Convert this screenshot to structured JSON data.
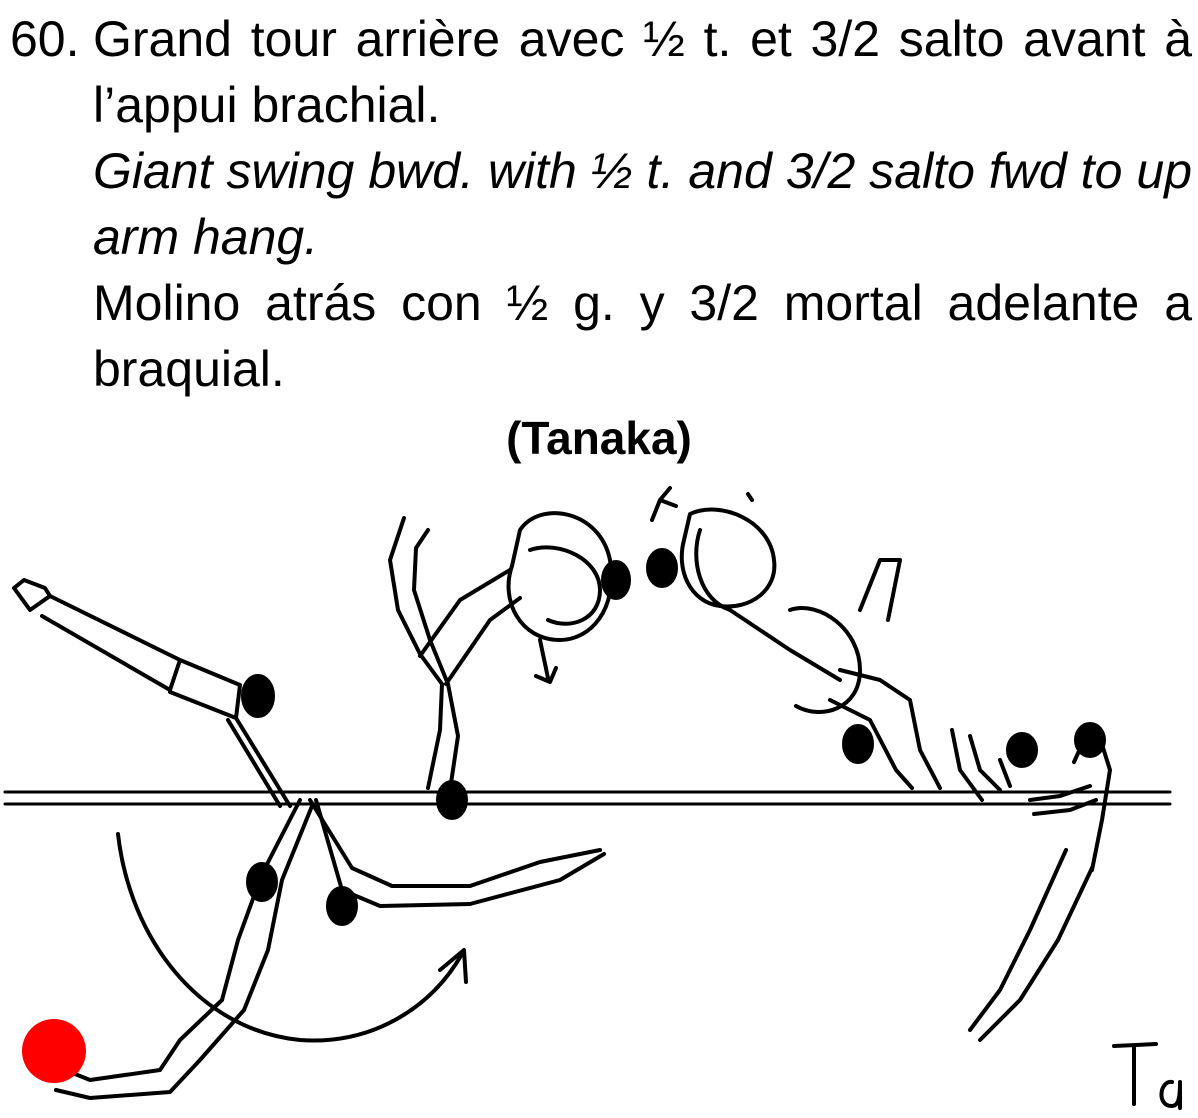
{
  "entry": {
    "number": "60.",
    "french": [
      "Grand tour arrière avec ½ t. et 3/2 salto avant à",
      "l’appui brachial."
    ],
    "english": [
      "Giant swing bwd. with ½ t. and 3/2 salto fwd to up",
      "arm hang."
    ],
    "spanish": [
      "Molino atrás con ½ g. y 3/2 mortal adelante a",
      "braquial."
    ],
    "element_name": "(Tanaka)",
    "signature": "Ta"
  },
  "colors": {
    "text": "#000000",
    "marker_dot": "#ff0000"
  }
}
